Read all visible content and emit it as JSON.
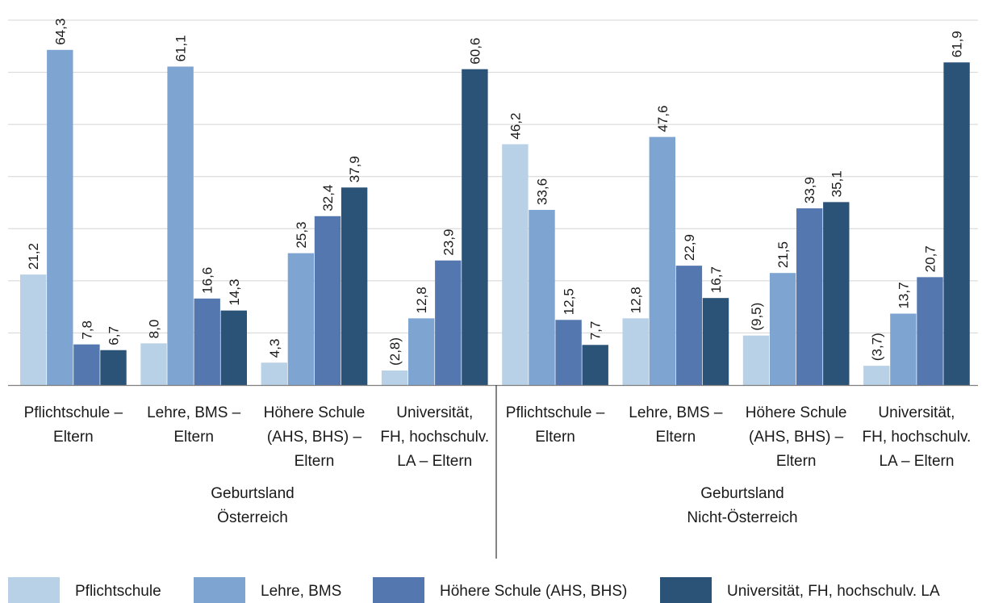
{
  "colors": [
    "#b9d1e6",
    "#7ea4d1",
    "#5477b0",
    "#2b5277"
  ],
  "chart_data": {
    "type": "bar",
    "ylim": [
      0,
      70
    ],
    "grid": true,
    "legend_position": "bottom",
    "group_labels": [
      [
        "Geburtsland",
        "Österreich"
      ],
      [
        "Geburtsland",
        "Nicht-Österreich"
      ]
    ],
    "categories": [
      [
        "Pflichtschule –",
        "Eltern"
      ],
      [
        "Lehre, BMS –",
        "Eltern"
      ],
      [
        "Höhere Schule",
        "(AHS, BHS) –",
        "Eltern"
      ],
      [
        "Universität,",
        "FH, hochschulv.",
        "LA – Eltern"
      ],
      [
        "Pflichtschule –",
        "Eltern"
      ],
      [
        "Lehre, BMS –",
        "Eltern"
      ],
      [
        "Höhere Schule",
        "(AHS, BHS) –",
        "Eltern"
      ],
      [
        "Universität,",
        "FH, hochschulv.",
        "LA – Eltern"
      ]
    ],
    "series": [
      {
        "name": "Pflichtschule",
        "values": [
          21.2,
          8.0,
          4.3,
          2.8,
          46.2,
          12.8,
          9.5,
          3.7
        ],
        "labels": [
          "21,2",
          "8,0",
          "4,3",
          "(2,8)",
          "46,2",
          "12,8",
          "(9,5)",
          "(3,7)"
        ]
      },
      {
        "name": "Lehre, BMS",
        "values": [
          64.3,
          61.1,
          25.3,
          12.8,
          33.6,
          47.6,
          21.5,
          13.7
        ],
        "labels": [
          "64,3",
          "61,1",
          "25,3",
          "12,8",
          "33,6",
          "47,6",
          "21,5",
          "13,7"
        ]
      },
      {
        "name": "Höhere Schule (AHS, BHS)",
        "values": [
          7.8,
          16.6,
          32.4,
          23.9,
          12.5,
          22.9,
          33.9,
          20.7
        ],
        "labels": [
          "7,8",
          "16,6",
          "32,4",
          "23,9",
          "12,5",
          "22,9",
          "33,9",
          "20,7"
        ]
      },
      {
        "name": "Universität, FH, hochschulv. LA",
        "values": [
          6.7,
          14.3,
          37.9,
          60.6,
          7.7,
          16.7,
          35.1,
          61.9
        ],
        "labels": [
          "6,7",
          "14,3",
          "37,9",
          "60,6",
          "7,7",
          "16,7",
          "35,1",
          "61,9"
        ]
      }
    ]
  }
}
